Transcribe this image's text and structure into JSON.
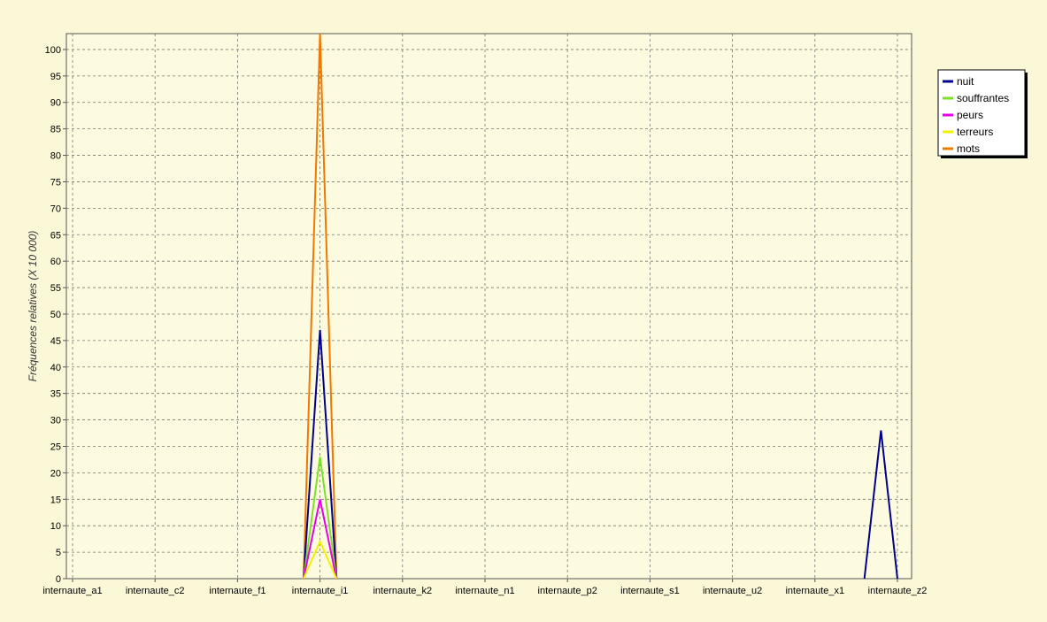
{
  "chart_data": {
    "type": "line",
    "title": "",
    "xlabel": "",
    "ylabel": "Fréquences relatives (X 10 000)",
    "ylim": [
      0,
      103
    ],
    "yticks": [
      0,
      5,
      10,
      15,
      20,
      25,
      30,
      35,
      40,
      45,
      50,
      55,
      60,
      65,
      70,
      75,
      80,
      85,
      90,
      95,
      100
    ],
    "grid": true,
    "legend_position": "right",
    "x_tick_labels": [
      "internaute_a1",
      "internaute_c2",
      "internaute_f1",
      "internaute_i1",
      "internaute_k2",
      "internaute_n1",
      "internaute_p2",
      "internaute_s1",
      "internaute_u2",
      "internaute_x1",
      "internaute_z2"
    ],
    "x_tick_indices": [
      0,
      5,
      10,
      15,
      20,
      25,
      30,
      35,
      40,
      45,
      50
    ],
    "x_count": 53,
    "series": [
      {
        "name": "nuit",
        "color": "#00008b",
        "points": [
          [
            14,
            0
          ],
          [
            15,
            47
          ],
          [
            16,
            0
          ],
          [
            48,
            0
          ],
          [
            49,
            28
          ],
          [
            50,
            0
          ]
        ]
      },
      {
        "name": "souffrantes",
        "color": "#7fe02a",
        "points": [
          [
            14,
            0
          ],
          [
            15,
            23
          ],
          [
            16,
            0
          ]
        ]
      },
      {
        "name": "peurs",
        "color": "#e600e6",
        "points": [
          [
            14,
            0
          ],
          [
            15,
            15
          ],
          [
            16,
            0
          ]
        ]
      },
      {
        "name": "terreurs",
        "color": "#f2f200",
        "points": [
          [
            14,
            0
          ],
          [
            15,
            7
          ],
          [
            16,
            0
          ]
        ]
      },
      {
        "name": "mots",
        "color": "#f07800",
        "points": [
          [
            14,
            0
          ],
          [
            15,
            103
          ],
          [
            16,
            0
          ]
        ]
      }
    ]
  }
}
